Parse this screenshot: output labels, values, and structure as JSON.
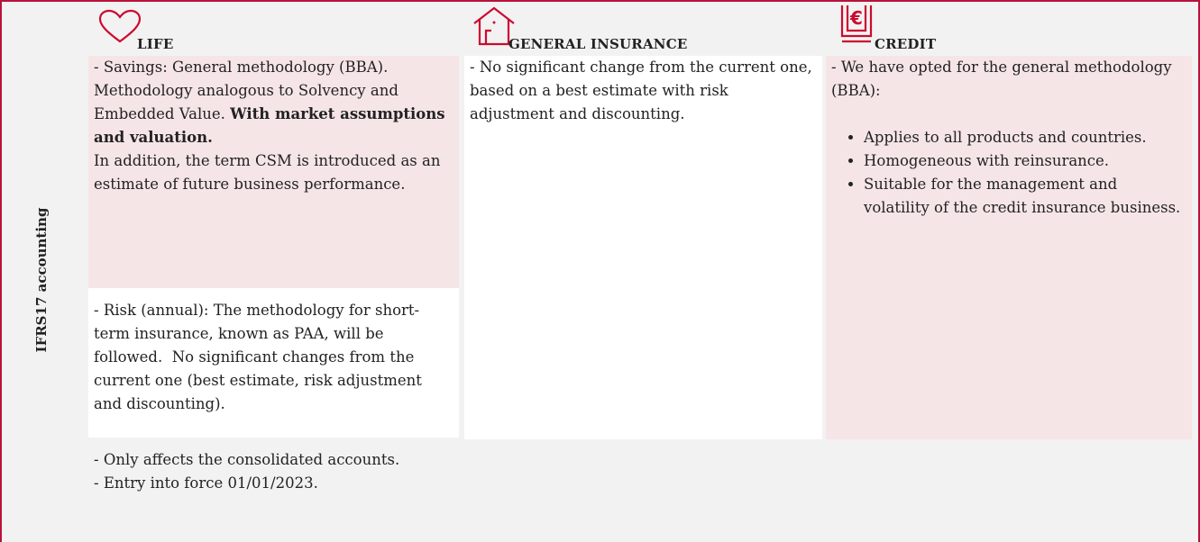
{
  "side_label": "IFRS17 accounting",
  "life": {
    "title": "LIFE",
    "savings": {
      "text": "- Savings: General methodology (BBA). Methodology analogous to Solvency and Embedded Value.",
      "bold": "With market assumptions and valuation.",
      "extra": "In addition, the term CSM is introduced as an estimate of future business performance."
    },
    "risk": "- Risk (annual): The methodology for short-term insurance, known as PAA, will be followed.  No significant changes from the current one (best estimate, risk adjustment and discounting)."
  },
  "general": {
    "title": "GENERAL INSURANCE",
    "text": "- No significant change from the current one, based on a best estimate with risk adjustment and discounting."
  },
  "credit": {
    "title": "CREDIT",
    "intro": "- We have opted for the general methodology (BBA):",
    "bullets": [
      "Applies to all products and countries.",
      "Homogeneous with reinsurance.",
      "Suitable for the management and volatility of the credit insurance business."
    ]
  },
  "footer": [
    "- Only affects the consolidated accounts.",
    "- Entry into force 01/01/2023."
  ]
}
